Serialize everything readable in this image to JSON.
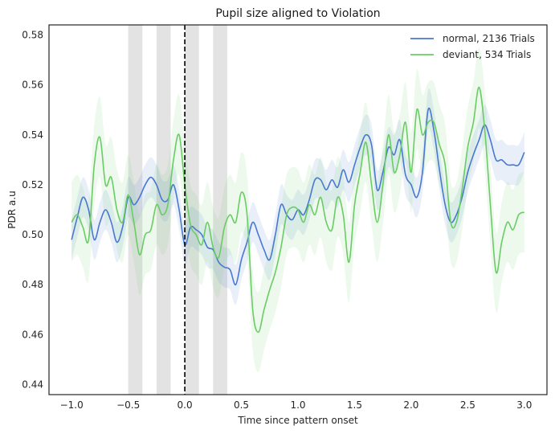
{
  "chart_data": {
    "type": "line",
    "title": "Pupil size aligned to Violation",
    "xlabel": "Time since pattern onset",
    "ylabel": "PDR a.u",
    "xlim": [
      -1.2,
      3.2
    ],
    "ylim": [
      0.436,
      0.584
    ],
    "xticks": [
      -1.0,
      -0.5,
      0.0,
      0.5,
      1.0,
      1.5,
      2.0,
      2.5,
      3.0
    ],
    "xtick_labels": [
      "−1.0",
      "−0.5",
      "0.0",
      "0.5",
      "1.0",
      "1.5",
      "2.0",
      "2.5",
      "3.0"
    ],
    "yticks": [
      0.44,
      0.46,
      0.48,
      0.5,
      0.52,
      0.54,
      0.56,
      0.58
    ],
    "ytick_labels": [
      "0.44",
      "0.46",
      "0.48",
      "0.50",
      "0.52",
      "0.54",
      "0.56",
      "0.58"
    ],
    "grid": false,
    "legend_position": "top-right",
    "onset_line": {
      "x": 0.0,
      "color": "#000000",
      "style": "dashed"
    },
    "shaded_regions": [
      {
        "x0": -0.5,
        "x1": -0.375,
        "color": "#e3e3e3"
      },
      {
        "x0": -0.25,
        "x1": -0.125,
        "color": "#e3e3e3"
      },
      {
        "x0": 0.0,
        "x1": 0.125,
        "color": "#e3e3e3"
      },
      {
        "x0": 0.25,
        "x1": 0.375,
        "color": "#e3e3e3"
      }
    ],
    "series": [
      {
        "name": "normal, 2136 Trials",
        "color": "#4878cf",
        "band_color": "#4878cf",
        "points": [
          [
            -1.0,
            0.498
          ],
          [
            -0.95,
            0.507
          ],
          [
            -0.9,
            0.515
          ],
          [
            -0.85,
            0.51
          ],
          [
            -0.8,
            0.498
          ],
          [
            -0.75,
            0.505
          ],
          [
            -0.7,
            0.51
          ],
          [
            -0.65,
            0.505
          ],
          [
            -0.6,
            0.497
          ],
          [
            -0.55,
            0.503
          ],
          [
            -0.5,
            0.515
          ],
          [
            -0.45,
            0.512
          ],
          [
            -0.4,
            0.515
          ],
          [
            -0.35,
            0.52
          ],
          [
            -0.3,
            0.523
          ],
          [
            -0.25,
            0.52
          ],
          [
            -0.2,
            0.514
          ],
          [
            -0.15,
            0.514
          ],
          [
            -0.1,
            0.52
          ],
          [
            -0.05,
            0.51
          ],
          [
            0.0,
            0.496
          ],
          [
            0.05,
            0.503
          ],
          [
            0.1,
            0.502
          ],
          [
            0.15,
            0.5
          ],
          [
            0.2,
            0.495
          ],
          [
            0.25,
            0.494
          ],
          [
            0.3,
            0.489
          ],
          [
            0.35,
            0.487
          ],
          [
            0.4,
            0.486
          ],
          [
            0.45,
            0.48
          ],
          [
            0.5,
            0.49
          ],
          [
            0.55,
            0.497
          ],
          [
            0.6,
            0.505
          ],
          [
            0.65,
            0.5
          ],
          [
            0.7,
            0.494
          ],
          [
            0.75,
            0.49
          ],
          [
            0.8,
            0.5
          ],
          [
            0.85,
            0.512
          ],
          [
            0.9,
            0.508
          ],
          [
            0.95,
            0.506
          ],
          [
            1.0,
            0.51
          ],
          [
            1.05,
            0.508
          ],
          [
            1.1,
            0.514
          ],
          [
            1.15,
            0.522
          ],
          [
            1.2,
            0.522
          ],
          [
            1.25,
            0.518
          ],
          [
            1.3,
            0.522
          ],
          [
            1.35,
            0.519
          ],
          [
            1.4,
            0.526
          ],
          [
            1.45,
            0.521
          ],
          [
            1.5,
            0.528
          ],
          [
            1.55,
            0.535
          ],
          [
            1.6,
            0.54
          ],
          [
            1.65,
            0.536
          ],
          [
            1.7,
            0.518
          ],
          [
            1.75,
            0.525
          ],
          [
            1.8,
            0.535
          ],
          [
            1.85,
            0.532
          ],
          [
            1.9,
            0.538
          ],
          [
            1.95,
            0.524
          ],
          [
            2.0,
            0.52
          ],
          [
            2.05,
            0.515
          ],
          [
            2.1,
            0.525
          ],
          [
            2.15,
            0.55
          ],
          [
            2.2,
            0.542
          ],
          [
            2.25,
            0.526
          ],
          [
            2.3,
            0.512
          ],
          [
            2.35,
            0.505
          ],
          [
            2.4,
            0.508
          ],
          [
            2.45,
            0.515
          ],
          [
            2.5,
            0.525
          ],
          [
            2.55,
            0.532
          ],
          [
            2.6,
            0.538
          ],
          [
            2.65,
            0.544
          ],
          [
            2.7,
            0.538
          ],
          [
            2.75,
            0.53
          ],
          [
            2.8,
            0.53
          ],
          [
            2.85,
            0.528
          ],
          [
            2.9,
            0.528
          ],
          [
            2.95,
            0.528
          ],
          [
            3.0,
            0.533
          ]
        ],
        "band_halfwidth": 0.008
      },
      {
        "name": "deviant, 534 Trials",
        "color": "#6acc65",
        "band_color": "#6acc65",
        "points": [
          [
            -1.0,
            0.505
          ],
          [
            -0.95,
            0.508
          ],
          [
            -0.9,
            0.503
          ],
          [
            -0.85,
            0.498
          ],
          [
            -0.8,
            0.528
          ],
          [
            -0.75,
            0.539
          ],
          [
            -0.7,
            0.52
          ],
          [
            -0.65,
            0.523
          ],
          [
            -0.6,
            0.51
          ],
          [
            -0.55,
            0.505
          ],
          [
            -0.5,
            0.516
          ],
          [
            -0.45,
            0.505
          ],
          [
            -0.4,
            0.492
          ],
          [
            -0.35,
            0.5
          ],
          [
            -0.3,
            0.502
          ],
          [
            -0.25,
            0.512
          ],
          [
            -0.2,
            0.508
          ],
          [
            -0.15,
            0.512
          ],
          [
            -0.1,
            0.53
          ],
          [
            -0.05,
            0.54
          ],
          [
            0.0,
            0.52
          ],
          [
            0.05,
            0.504
          ],
          [
            0.1,
            0.5
          ],
          [
            0.15,
            0.496
          ],
          [
            0.2,
            0.505
          ],
          [
            0.25,
            0.495
          ],
          [
            0.3,
            0.491
          ],
          [
            0.35,
            0.503
          ],
          [
            0.4,
            0.508
          ],
          [
            0.45,
            0.505
          ],
          [
            0.5,
            0.517
          ],
          [
            0.55,
            0.508
          ],
          [
            0.6,
            0.47
          ],
          [
            0.65,
            0.461
          ],
          [
            0.7,
            0.47
          ],
          [
            0.75,
            0.478
          ],
          [
            0.8,
            0.485
          ],
          [
            0.85,
            0.495
          ],
          [
            0.9,
            0.508
          ],
          [
            0.95,
            0.511
          ],
          [
            1.0,
            0.51
          ],
          [
            1.05,
            0.505
          ],
          [
            1.1,
            0.512
          ],
          [
            1.15,
            0.508
          ],
          [
            1.2,
            0.515
          ],
          [
            1.25,
            0.505
          ],
          [
            1.3,
            0.502
          ],
          [
            1.35,
            0.515
          ],
          [
            1.4,
            0.508
          ],
          [
            1.45,
            0.489
          ],
          [
            1.5,
            0.512
          ],
          [
            1.55,
            0.525
          ],
          [
            1.6,
            0.537
          ],
          [
            1.65,
            0.52
          ],
          [
            1.7,
            0.505
          ],
          [
            1.75,
            0.52
          ],
          [
            1.8,
            0.54
          ],
          [
            1.85,
            0.525
          ],
          [
            1.9,
            0.532
          ],
          [
            1.95,
            0.545
          ],
          [
            2.0,
            0.525
          ],
          [
            2.05,
            0.55
          ],
          [
            2.1,
            0.54
          ],
          [
            2.15,
            0.545
          ],
          [
            2.2,
            0.545
          ],
          [
            2.25,
            0.536
          ],
          [
            2.3,
            0.528
          ],
          [
            2.35,
            0.505
          ],
          [
            2.4,
            0.505
          ],
          [
            2.45,
            0.518
          ],
          [
            2.5,
            0.535
          ],
          [
            2.55,
            0.545
          ],
          [
            2.6,
            0.559
          ],
          [
            2.65,
            0.542
          ],
          [
            2.7,
            0.512
          ],
          [
            2.75,
            0.485
          ],
          [
            2.8,
            0.497
          ],
          [
            2.85,
            0.505
          ],
          [
            2.9,
            0.502
          ],
          [
            2.95,
            0.508
          ],
          [
            3.0,
            0.509
          ]
        ],
        "band_halfwidth": 0.016
      }
    ]
  }
}
